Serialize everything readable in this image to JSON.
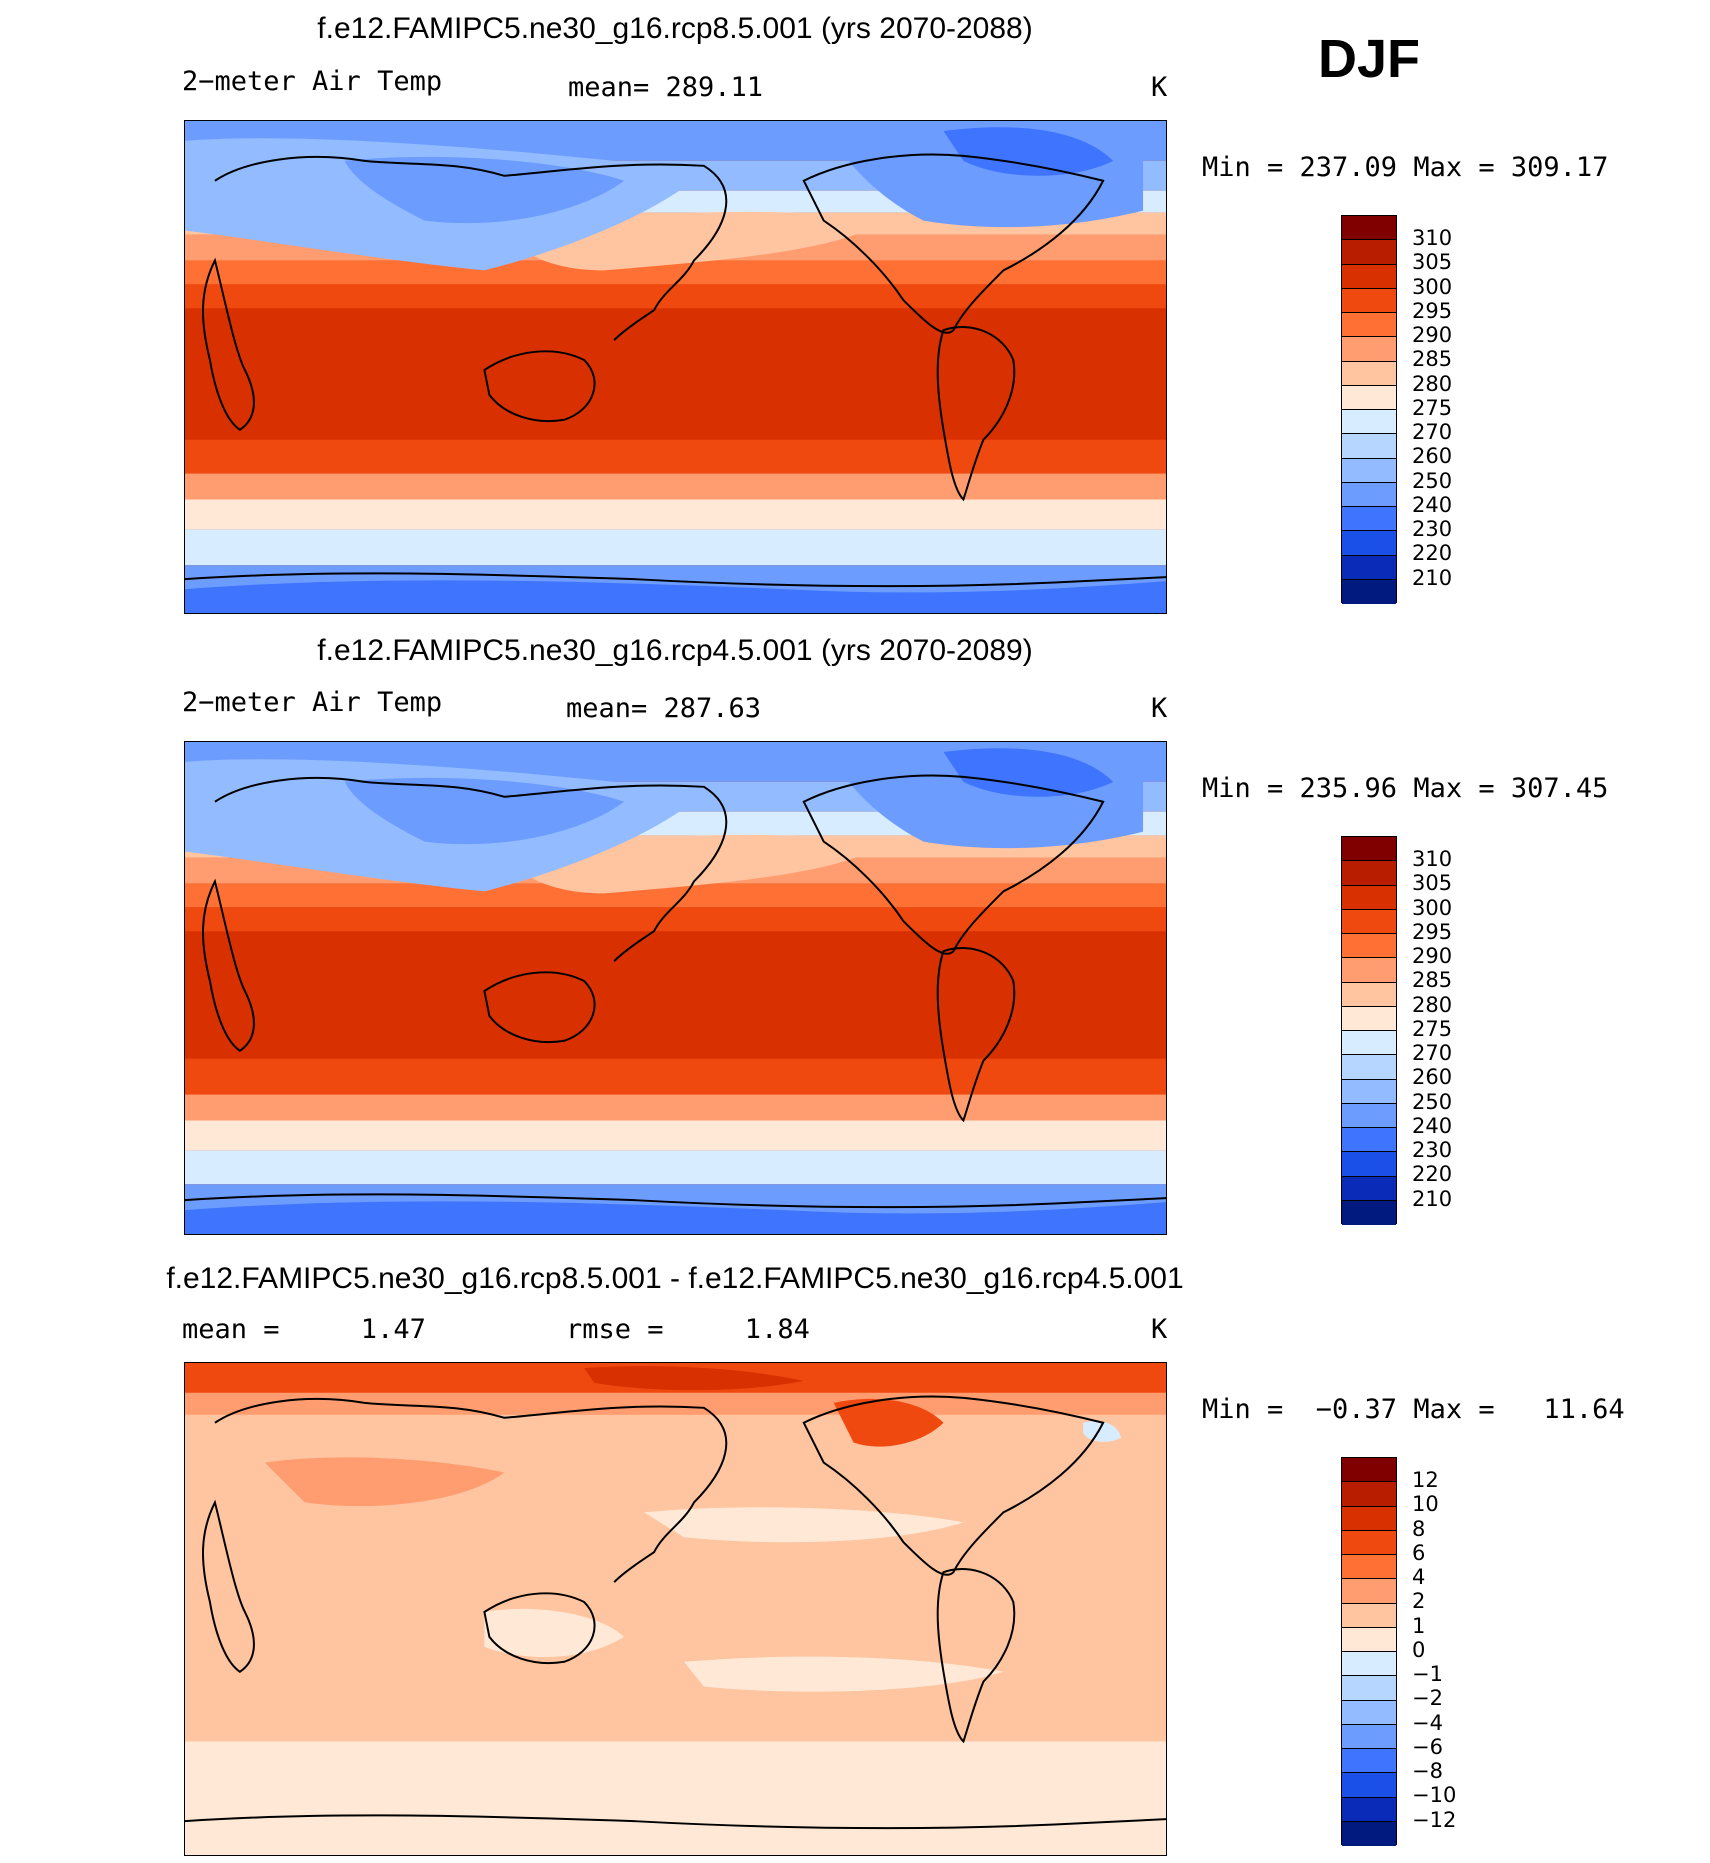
{
  "season": "DJF",
  "panels": [
    {
      "title": "f.e12.FAMIPC5.ne30_g16.rcp8.5.001 (yrs 2070-2088)",
      "variable": "2−meter Air Temp",
      "stat": "mean= 289.11",
      "units": "K",
      "minmax": "Min = 237.09 Max = 309.17",
      "colorbar": {
        "labels": [
          "310",
          "305",
          "300",
          "295",
          "290",
          "285",
          "280",
          "275",
          "270",
          "260",
          "250",
          "240",
          "230",
          "220",
          "210"
        ],
        "colors": [
          "#800000",
          "#b81d00",
          "#d93000",
          "#f04910",
          "#ff7035",
          "#ff9d70",
          "#ffc4a0",
          "#ffe9d6",
          "#d8ecff",
          "#b6d6ff",
          "#93bbff",
          "#6d9cff",
          "#3f74ff",
          "#1a4fe8",
          "#0a2bb8",
          "#001a80"
        ]
      }
    },
    {
      "title": "f.e12.FAMIPC5.ne30_g16.rcp4.5.001 (yrs 2070-2089)",
      "variable": "2−meter Air Temp",
      "stat": "mean= 287.63",
      "units": "K",
      "minmax": "Min = 235.96 Max = 307.45",
      "colorbar": {
        "labels": [
          "310",
          "305",
          "300",
          "295",
          "290",
          "285",
          "280",
          "275",
          "270",
          "260",
          "250",
          "240",
          "230",
          "220",
          "210"
        ],
        "colors": [
          "#800000",
          "#b81d00",
          "#d93000",
          "#f04910",
          "#ff7035",
          "#ff9d70",
          "#ffc4a0",
          "#ffe9d6",
          "#d8ecff",
          "#b6d6ff",
          "#93bbff",
          "#6d9cff",
          "#3f74ff",
          "#1a4fe8",
          "#0a2bb8",
          "#001a80"
        ]
      }
    },
    {
      "title": "f.e12.FAMIPC5.ne30_g16.rcp8.5.001 - f.e12.FAMIPC5.ne30_g16.rcp4.5.001",
      "stat_left": "mean =     1.47",
      "stat_mid": "rmse =     1.84",
      "units": "K",
      "minmax": "Min =  −0.37 Max =   11.64",
      "colorbar": {
        "labels": [
          "12",
          "10",
          "8",
          "6",
          "4",
          "2",
          "1",
          "0",
          "−1",
          "−2",
          "−4",
          "−6",
          "−8",
          "−10",
          "−12"
        ],
        "colors": [
          "#800000",
          "#b81d00",
          "#d93000",
          "#f04910",
          "#ff7035",
          "#ff9d70",
          "#ffc4a0",
          "#ffe9d6",
          "#d8ecff",
          "#b6d6ff",
          "#93bbff",
          "#6d9cff",
          "#3f74ff",
          "#1a4fe8",
          "#0a2bb8",
          "#001a80"
        ]
      }
    }
  ]
}
